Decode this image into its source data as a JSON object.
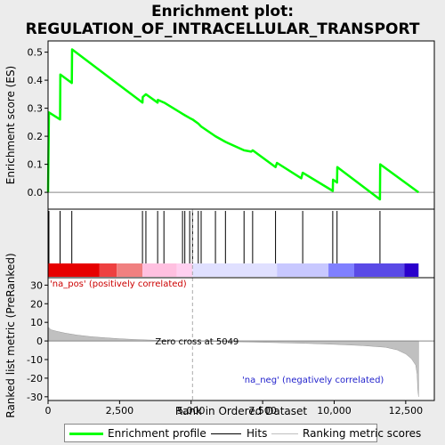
{
  "title_line1": "Enrichment plot:",
  "title_line2": "REGULATION_OF_INTRACELLULAR_TRANSPORT",
  "colors": {
    "enrichment_line": "#00ff00",
    "hits": "#000000",
    "metric_fill": "#c0c0c0",
    "zero_line": "#aaaaaa",
    "pos_strong": "#e60000",
    "neg_strong": "#2a00cc"
  },
  "legend": {
    "items": [
      {
        "label": "Enrichment profile",
        "color": "#00ff00",
        "style": "line-thick"
      },
      {
        "label": "Hits",
        "color": "#000000",
        "style": "line"
      },
      {
        "label": "Ranking metric scores",
        "color": "#c0c0c0",
        "style": "line"
      }
    ]
  },
  "chart_data": [
    {
      "type": "line",
      "name": "enrichment-profile",
      "ylabel": "Enrichment score (ES)",
      "xlim": [
        0,
        13500
      ],
      "ylim": [
        -0.06,
        0.54
      ],
      "yticks": [
        0.0,
        0.1,
        0.2,
        0.3,
        0.4,
        0.5
      ],
      "ytick_labels": [
        "0.0",
        "0.1",
        "0.2",
        "0.3",
        "0.4",
        "0.5"
      ],
      "points": [
        [
          0,
          0.0
        ],
        [
          30,
          0.285
        ],
        [
          420,
          0.26
        ],
        [
          430,
          0.42
        ],
        [
          830,
          0.39
        ],
        [
          840,
          0.51
        ],
        [
          3300,
          0.32
        ],
        [
          3310,
          0.34
        ],
        [
          3420,
          0.35
        ],
        [
          3830,
          0.32
        ],
        [
          3840,
          0.33
        ],
        [
          4050,
          0.32
        ],
        [
          4060,
          0.32
        ],
        [
          4700,
          0.28
        ],
        [
          4780,
          0.275
        ],
        [
          4950,
          0.265
        ],
        [
          5050,
          0.26
        ],
        [
          5250,
          0.245
        ],
        [
          5350,
          0.235
        ],
        [
          5850,
          0.2
        ],
        [
          6200,
          0.18
        ],
        [
          6850,
          0.15
        ],
        [
          7100,
          0.145
        ],
        [
          7150,
          0.15
        ],
        [
          7950,
          0.09
        ],
        [
          8000,
          0.105
        ],
        [
          8850,
          0.05
        ],
        [
          8900,
          0.07
        ],
        [
          9950,
          0.005
        ],
        [
          9960,
          0.045
        ],
        [
          10100,
          0.035
        ],
        [
          10110,
          0.09
        ],
        [
          11600,
          -0.025
        ],
        [
          11610,
          0.1
        ],
        [
          12950,
          0.0
        ]
      ]
    },
    {
      "type": "hits",
      "name": "hits",
      "x": [
        30,
        420,
        830,
        3300,
        3420,
        3830,
        4050,
        4700,
        4780,
        4950,
        5050,
        5250,
        5350,
        5850,
        6200,
        6850,
        7150,
        7950,
        8900,
        9950,
        10100,
        11600
      ],
      "pos_label": "'na_pos' (positively correlated)",
      "neg_label": "'na_neg' (negatively correlated)"
    },
    {
      "type": "area",
      "name": "ranked-metric",
      "xlabel": "Rank in Ordered Dataset",
      "ylabel": "Ranked list metric (PreRanked)",
      "xlim": [
        0,
        13500
      ],
      "ylim": [
        -32,
        34
      ],
      "xticks": [
        0,
        2500,
        5000,
        7500,
        10000,
        12500
      ],
      "xtick_labels": [
        "0",
        "2,500",
        "5,000",
        "7,500",
        "10,000",
        "12,500"
      ],
      "yticks": [
        -30,
        -20,
        -10,
        0,
        10,
        20,
        30
      ],
      "ytick_labels": [
        "-30",
        "-20",
        "-10",
        "0",
        "10",
        "20",
        "30"
      ],
      "points": [
        [
          0,
          7.5
        ],
        [
          100,
          6.0
        ],
        [
          300,
          5.2
        ],
        [
          600,
          4.2
        ],
        [
          1000,
          3.2
        ],
        [
          1500,
          2.3
        ],
        [
          2000,
          1.7
        ],
        [
          2500,
          1.2
        ],
        [
          3000,
          0.8
        ],
        [
          3500,
          0.5
        ],
        [
          4000,
          0.3
        ],
        [
          4500,
          0.15
        ],
        [
          5049,
          0.0
        ],
        [
          6000,
          -0.3
        ],
        [
          7000,
          -0.6
        ],
        [
          8000,
          -0.9
        ],
        [
          9000,
          -1.3
        ],
        [
          10000,
          -1.8
        ],
        [
          11000,
          -2.5
        ],
        [
          11800,
          -3.4
        ],
        [
          12200,
          -4.8
        ],
        [
          12500,
          -7.0
        ],
        [
          12700,
          -9.5
        ],
        [
          12850,
          -13.0
        ],
        [
          12900,
          -18.0
        ],
        [
          12920,
          -26.0
        ],
        [
          12950,
          -30.0
        ]
      ],
      "zero_cross": 5049,
      "zero_cross_label": "Zero cross at 5049"
    }
  ]
}
